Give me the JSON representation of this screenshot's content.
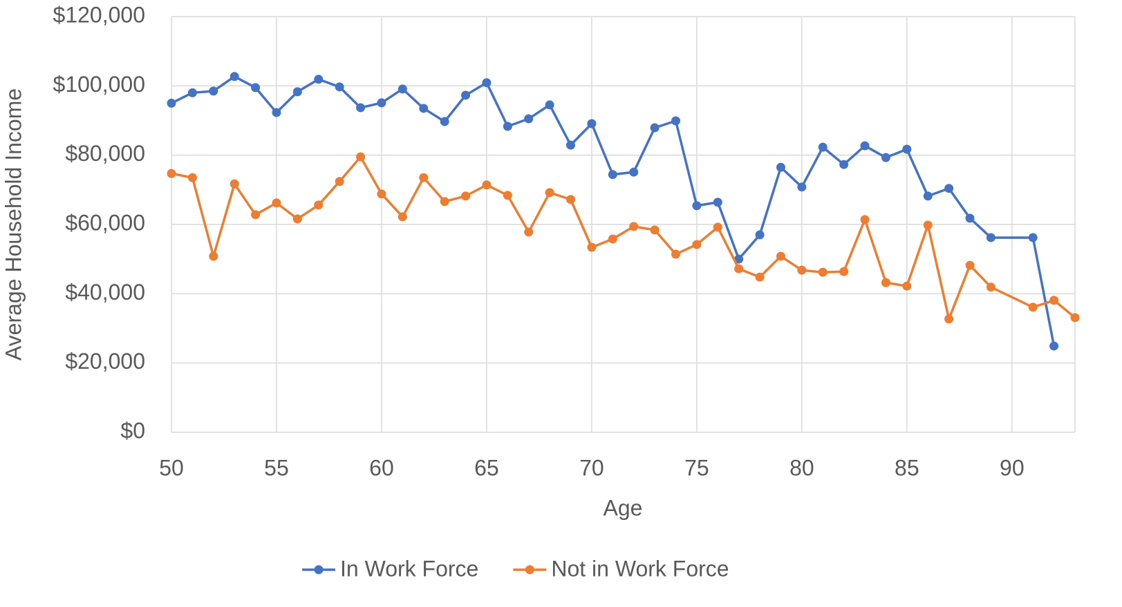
{
  "chart_data": {
    "type": "line",
    "x_label": "Age",
    "y_label": "Average Household Income",
    "x": [
      50,
      51,
      52,
      53,
      54,
      55,
      56,
      57,
      58,
      59,
      60,
      61,
      62,
      63,
      64,
      65,
      66,
      67,
      68,
      69,
      70,
      71,
      72,
      73,
      74,
      75,
      76,
      77,
      78,
      79,
      80,
      81,
      82,
      83,
      84,
      85,
      86,
      87,
      88,
      89,
      91,
      92,
      93
    ],
    "series": [
      {
        "name": "In Work Force",
        "color": "#4472c4",
        "values": [
          95000,
          98000,
          98500,
          102700,
          99500,
          92300,
          98300,
          101900,
          99700,
          93700,
          95100,
          99100,
          93500,
          89700,
          97300,
          100900,
          88300,
          90500,
          94500,
          82900,
          89100,
          74400,
          75100,
          87900,
          89900,
          65400,
          66400,
          50000,
          57000,
          76500,
          70800,
          82300,
          77300,
          82700,
          79300,
          81700,
          68200,
          70400,
          61800,
          56200,
          56200,
          24900,
          null
        ]
      },
      {
        "name": "Not in Work Force",
        "color": "#ed7d31",
        "values": [
          74700,
          73500,
          50800,
          71700,
          62800,
          66200,
          61600,
          65600,
          72400,
          79500,
          68800,
          62200,
          73500,
          66600,
          68200,
          71400,
          68400,
          57800,
          69200,
          67200,
          53400,
          55800,
          59400,
          58400,
          51400,
          54200,
          59200,
          47200,
          44800,
          50800,
          46800,
          46200,
          46400,
          61400,
          43200,
          42200,
          59800,
          32700,
          48200,
          41900,
          36100,
          38100,
          33100
        ]
      }
    ],
    "xlim": [
      50,
      93
    ],
    "xticks": [
      50,
      55,
      60,
      65,
      70,
      75,
      80,
      85,
      90
    ],
    "ylim": [
      0,
      120000
    ],
    "yticks": [
      {
        "value": 0,
        "label": "$0"
      },
      {
        "value": 20000,
        "label": "$20,000"
      },
      {
        "value": 40000,
        "label": "$40,000"
      },
      {
        "value": 60000,
        "label": "$60,000"
      },
      {
        "value": 80000,
        "label": "$80,000"
      },
      {
        "value": 100000,
        "label": "$100,000"
      },
      {
        "value": 120000,
        "label": "$120,000"
      }
    ],
    "grid": true,
    "legend": "bottom"
  }
}
